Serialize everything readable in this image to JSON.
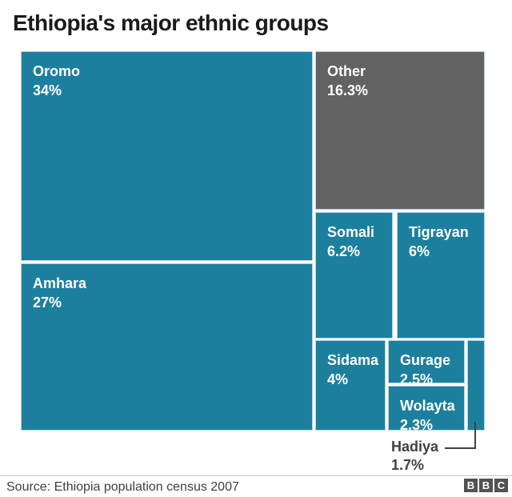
{
  "header": {
    "title": "Ethiopia's major ethnic groups"
  },
  "chart_data": {
    "type": "treemap",
    "title": "Ethiopia's major ethnic groups",
    "unit": "percent of population",
    "cells": [
      {
        "name": "Oromo",
        "value": 34,
        "label": "34%",
        "color": "#1d7f9e"
      },
      {
        "name": "Amhara",
        "value": 27,
        "label": "27%",
        "color": "#1d7f9e"
      },
      {
        "name": "Other",
        "value": 16.3,
        "label": "16.3%",
        "color": "#626262"
      },
      {
        "name": "Somali",
        "value": 6.2,
        "label": "6.2%",
        "color": "#1d7f9e"
      },
      {
        "name": "Tigrayan",
        "value": 6,
        "label": "6%",
        "color": "#1d7f9e"
      },
      {
        "name": "Sidama",
        "value": 4,
        "label": "4%",
        "color": "#1d7f9e"
      },
      {
        "name": "Gurage",
        "value": 2.5,
        "label": "2.5%",
        "color": "#1d7f9e"
      },
      {
        "name": "Wolayta",
        "value": 2.3,
        "label": "2.3%",
        "color": "#1d7f9e"
      },
      {
        "name": "Hadiya",
        "value": 1.7,
        "label": "1.7%",
        "color": "#1d7f9e",
        "label_position": "external-callout"
      }
    ],
    "colors": {
      "primary_teal": "#1d7f9e",
      "other_gray": "#626262",
      "cell_outline": "#b5d3e0",
      "label_text": "#ffffff"
    },
    "legend": "none",
    "layout_hint": "large blocks left (Oromo top, Amhara bottom); right column top-to-bottom: Other, then Somali/Tigrayan row, then Sidama/Gurage-Wolayta/Hadiya row"
  },
  "callout": {
    "name": "Hadiya",
    "label": "1.7%"
  },
  "footer": {
    "source": "Source: Ethiopia population census 2007",
    "logo_letters": [
      "B",
      "B",
      "C"
    ]
  }
}
